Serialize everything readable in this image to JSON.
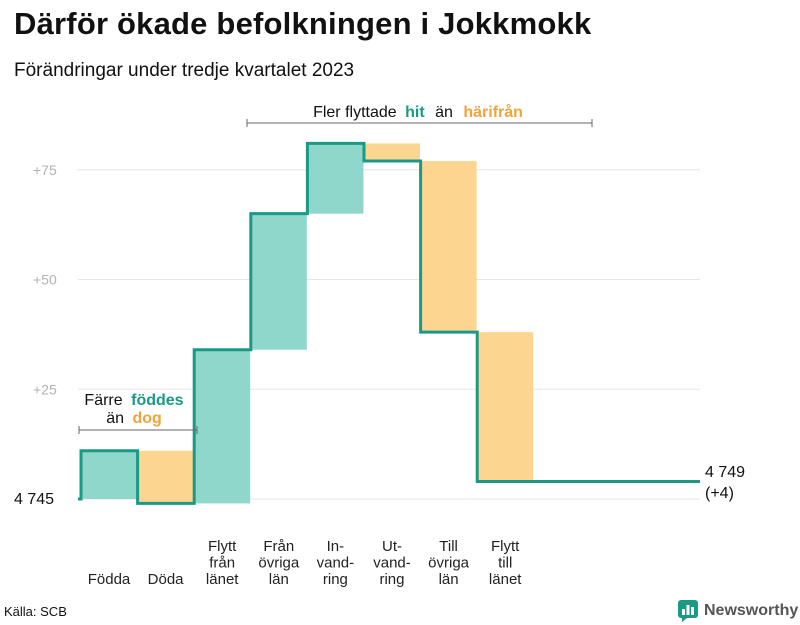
{
  "header": {
    "title": "Därför ökade befolkningen i Jokkmokk",
    "subtitle": "Förändringar under tredje kvartalet 2023"
  },
  "footer": {
    "source": "Källa: SCB",
    "brand": "Newsworthy",
    "brand_icon": "bar-chart-icon"
  },
  "colors": {
    "increase": "#8fd6cb",
    "decrease": "#fcd590",
    "line": "#1a9a85",
    "grid": "#e6e6e6",
    "hit_text": "#1a9a85",
    "harifran_text": "#f0a43a"
  },
  "chart_data": {
    "type": "waterfall",
    "title": "Därför ökade befolkningen i Jokkmokk",
    "subtitle": "Förändringar under tredje kvartalet 2023",
    "start": {
      "label": "4 745",
      "value": 4745
    },
    "end": {
      "label_line1": "4 749",
      "label_line2": "(+4)",
      "value": 4749,
      "change": 4
    },
    "steps": [
      {
        "label_lines": [
          "Födda"
        ],
        "change": 11,
        "kind": "increase"
      },
      {
        "label_lines": [
          "Döda"
        ],
        "change": -12,
        "kind": "decrease"
      },
      {
        "label_lines": [
          "Flytt",
          "från",
          "länet"
        ],
        "change": 35,
        "kind": "increase"
      },
      {
        "label_lines": [
          "Från",
          "övriga",
          "län"
        ],
        "change": 31,
        "kind": "increase"
      },
      {
        "label_lines": [
          "In-",
          "vand-",
          "ring"
        ],
        "change": 16,
        "kind": "increase"
      },
      {
        "label_lines": [
          "Ut-",
          "vand-",
          "ring"
        ],
        "change": -4,
        "kind": "decrease"
      },
      {
        "label_lines": [
          "Till",
          "övriga",
          "län"
        ],
        "change": -39,
        "kind": "decrease"
      },
      {
        "label_lines": [
          "Flytt",
          "till",
          "länet"
        ],
        "change": -34,
        "kind": "decrease"
      }
    ],
    "y_axis": {
      "range": [
        -2,
        82
      ],
      "ticks": [
        {
          "value": 25,
          "label": "+25"
        },
        {
          "value": 50,
          "label": "+50"
        },
        {
          "value": 75,
          "label": "+75"
        }
      ]
    },
    "grid": true,
    "annotations": {
      "births": {
        "line1": "Färre",
        "line1_bold": "föddes",
        "line2": "än",
        "line2_bold": "dog"
      },
      "moves": {
        "text1": "Fler flyttade",
        "bold1": "hit",
        "text2": "än",
        "bold2": "härifrån"
      }
    }
  }
}
